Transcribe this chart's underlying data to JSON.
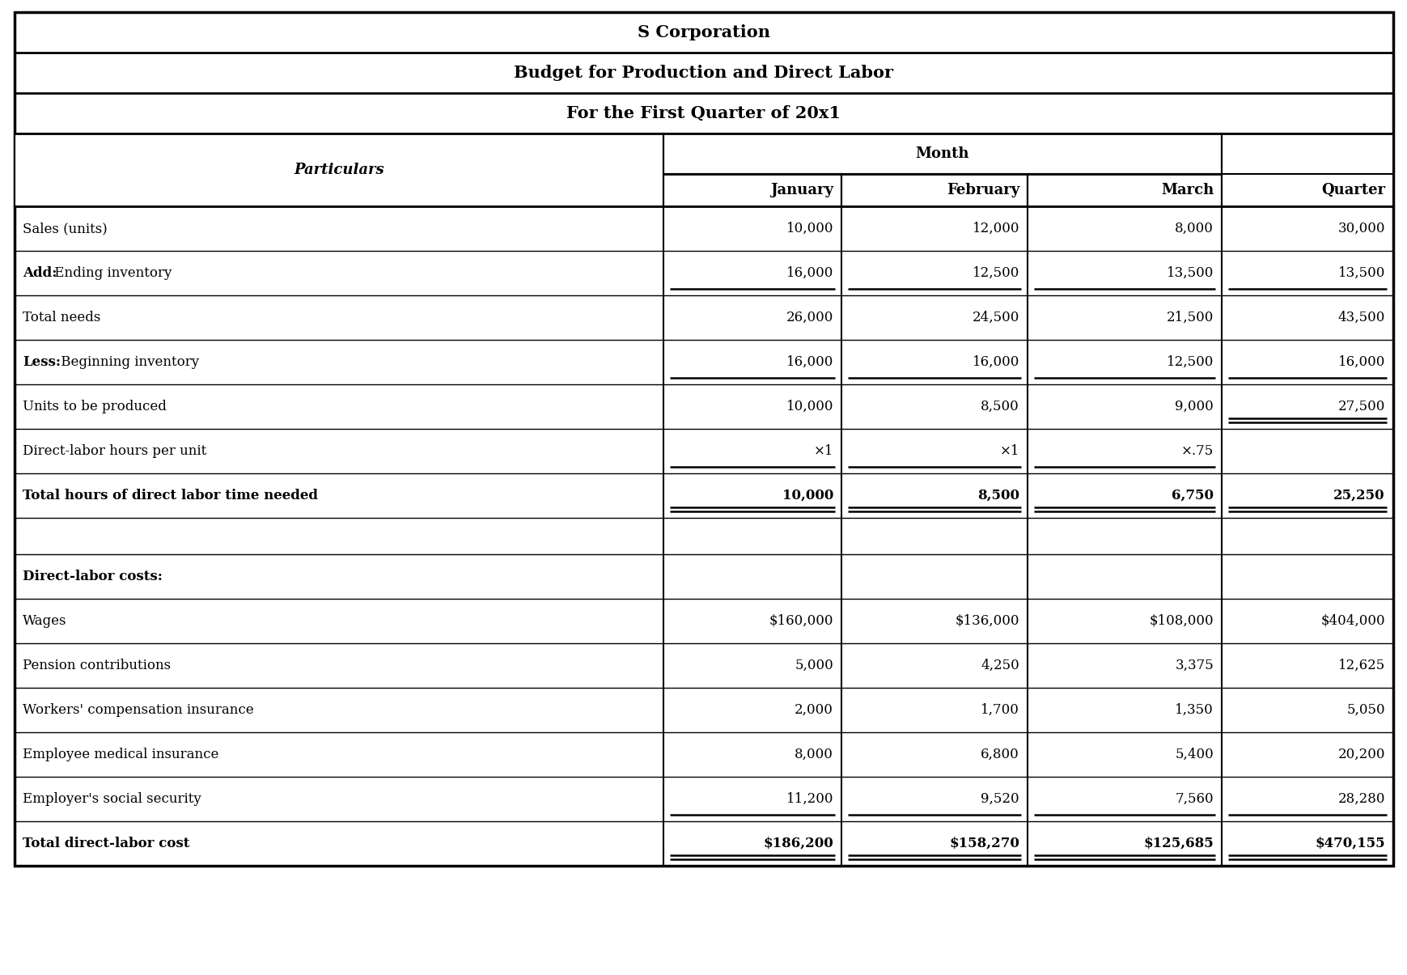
{
  "title1": "S Corporation",
  "title2": "Budget for Production and Direct Labor",
  "title3": "For the First Quarter of 20x1",
  "month_header": "Month",
  "col_headers_row2": [
    "January",
    "February",
    "March",
    "Quarter"
  ],
  "rows": [
    {
      "label": "Sales (units)",
      "bold": false,
      "prefix_bold": "",
      "vals": [
        "10,000",
        "12,000",
        "8,000",
        "30,000"
      ],
      "ul": [
        false,
        false,
        false,
        false
      ],
      "dul": [
        false,
        false,
        false,
        false
      ]
    },
    {
      "label": "Add: Ending inventory",
      "bold": false,
      "prefix_bold": "Add:",
      "vals": [
        "16,000",
        "12,500",
        "13,500",
        "13,500"
      ],
      "ul": [
        true,
        true,
        true,
        true
      ],
      "dul": [
        false,
        false,
        false,
        false
      ]
    },
    {
      "label": "Total needs",
      "bold": false,
      "prefix_bold": "",
      "vals": [
        "26,000",
        "24,500",
        "21,500",
        "43,500"
      ],
      "ul": [
        false,
        false,
        false,
        false
      ],
      "dul": [
        false,
        false,
        false,
        false
      ]
    },
    {
      "label": "Less: Beginning inventory",
      "bold": false,
      "prefix_bold": "Less:",
      "vals": [
        "16,000",
        "16,000",
        "12,500",
        "16,000"
      ],
      "ul": [
        true,
        true,
        true,
        true
      ],
      "dul": [
        false,
        false,
        false,
        false
      ]
    },
    {
      "label": "Units to be produced",
      "bold": false,
      "prefix_bold": "",
      "vals": [
        "10,000",
        "8,500",
        "9,000",
        "27,500"
      ],
      "ul": [
        false,
        false,
        false,
        true
      ],
      "dul": [
        false,
        false,
        false,
        true
      ]
    },
    {
      "label": "Direct-labor hours per unit",
      "bold": false,
      "prefix_bold": "",
      "vals": [
        "×1",
        "×1",
        "×.75",
        ""
      ],
      "ul": [
        true,
        true,
        true,
        false
      ],
      "dul": [
        false,
        false,
        false,
        false
      ]
    },
    {
      "label": "Total hours of direct labor time needed",
      "bold": true,
      "prefix_bold": "",
      "vals": [
        "10,000",
        "8,500",
        "6,750",
        "25,250"
      ],
      "ul": [
        true,
        true,
        true,
        true
      ],
      "dul": [
        true,
        true,
        true,
        true
      ]
    },
    {
      "label": "",
      "bold": false,
      "prefix_bold": "",
      "vals": [
        "",
        "",
        "",
        ""
      ],
      "ul": [
        false,
        false,
        false,
        false
      ],
      "dul": [
        false,
        false,
        false,
        false
      ],
      "empty": true
    },
    {
      "label": "Direct-labor costs:",
      "bold": true,
      "prefix_bold": "",
      "vals": [
        "",
        "",
        "",
        ""
      ],
      "ul": [
        false,
        false,
        false,
        false
      ],
      "dul": [
        false,
        false,
        false,
        false
      ]
    },
    {
      "label": "Wages",
      "bold": false,
      "prefix_bold": "",
      "vals": [
        "$160,000",
        "$136,000",
        "$108,000",
        "$404,000"
      ],
      "ul": [
        false,
        false,
        false,
        false
      ],
      "dul": [
        false,
        false,
        false,
        false
      ]
    },
    {
      "label": "Pension contributions",
      "bold": false,
      "prefix_bold": "",
      "vals": [
        "5,000",
        "4,250",
        "3,375",
        "12,625"
      ],
      "ul": [
        false,
        false,
        false,
        false
      ],
      "dul": [
        false,
        false,
        false,
        false
      ]
    },
    {
      "label": "Workers' compensation insurance",
      "bold": false,
      "prefix_bold": "",
      "vals": [
        "2,000",
        "1,700",
        "1,350",
        "5,050"
      ],
      "ul": [
        false,
        false,
        false,
        false
      ],
      "dul": [
        false,
        false,
        false,
        false
      ]
    },
    {
      "label": "Employee medical insurance",
      "bold": false,
      "prefix_bold": "",
      "vals": [
        "8,000",
        "6,800",
        "5,400",
        "20,200"
      ],
      "ul": [
        false,
        false,
        false,
        false
      ],
      "dul": [
        false,
        false,
        false,
        false
      ]
    },
    {
      "label": "Employer's social security",
      "bold": false,
      "prefix_bold": "",
      "vals": [
        "11,200",
        "9,520",
        "7,560",
        "28,280"
      ],
      "ul": [
        true,
        true,
        true,
        true
      ],
      "dul": [
        false,
        false,
        false,
        false
      ]
    },
    {
      "label": "Total direct-labor cost",
      "bold": true,
      "prefix_bold": "",
      "vals": [
        "$186,200",
        "$158,270",
        "$125,685",
        "$470,155"
      ],
      "ul": [
        true,
        true,
        true,
        true
      ],
      "dul": [
        true,
        true,
        true,
        true
      ]
    }
  ],
  "bg_color": "#ffffff",
  "fs_title": 15,
  "fs_header": 13,
  "fs_data": 12
}
